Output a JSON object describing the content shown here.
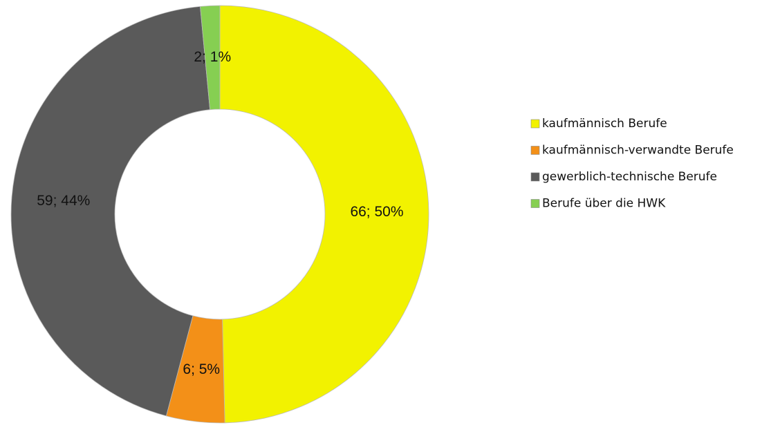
{
  "chart_data": {
    "type": "donut",
    "categories": [
      "kaufmännisch Berufe",
      "kaufmännisch-verwandte Berufe",
      "gewerblich-technische Berufe",
      "Berufe über die HWK"
    ],
    "values": [
      66,
      6,
      59,
      2
    ],
    "value_labels": [
      "66; 50%",
      "6; 5%",
      "59; 44%",
      "2; 1%"
    ],
    "colors": [
      "#f2f200",
      "#f39018",
      "#5a5a5a",
      "#86cf52"
    ],
    "legend": "right"
  }
}
